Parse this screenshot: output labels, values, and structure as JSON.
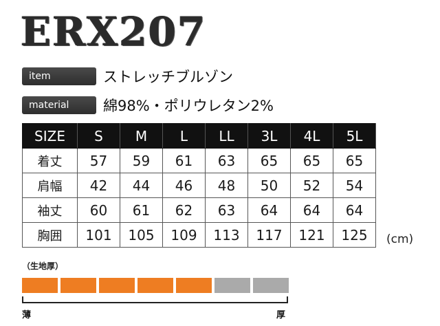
{
  "product": {
    "code": "ERX207"
  },
  "specs": [
    {
      "label": "item",
      "value": "ストレッチブルゾン"
    },
    {
      "label": "material",
      "value": "綿98%・ポリウレタン2%"
    }
  ],
  "size_table": {
    "header": [
      "SIZE",
      "S",
      "M",
      "L",
      "LL",
      "3L",
      "4L",
      "5L"
    ],
    "rows": [
      {
        "label": "着丈",
        "values": [
          "57",
          "59",
          "61",
          "63",
          "65",
          "65",
          "65"
        ]
      },
      {
        "label": "肩幅",
        "values": [
          "42",
          "44",
          "46",
          "48",
          "50",
          "52",
          "54"
        ]
      },
      {
        "label": "袖丈",
        "values": [
          "60",
          "61",
          "62",
          "63",
          "64",
          "64",
          "64"
        ]
      },
      {
        "label": "胸囲",
        "values": [
          "101",
          "105",
          "109",
          "113",
          "117",
          "121",
          "125"
        ]
      }
    ],
    "unit": "(cm)"
  },
  "fabric_thickness": {
    "label": "（生地厚）",
    "filled": 5,
    "total": 7,
    "fill_color": "#ee7d22",
    "empty_color": "#aaaaaa",
    "min_label": "薄",
    "max_label": "厚"
  }
}
